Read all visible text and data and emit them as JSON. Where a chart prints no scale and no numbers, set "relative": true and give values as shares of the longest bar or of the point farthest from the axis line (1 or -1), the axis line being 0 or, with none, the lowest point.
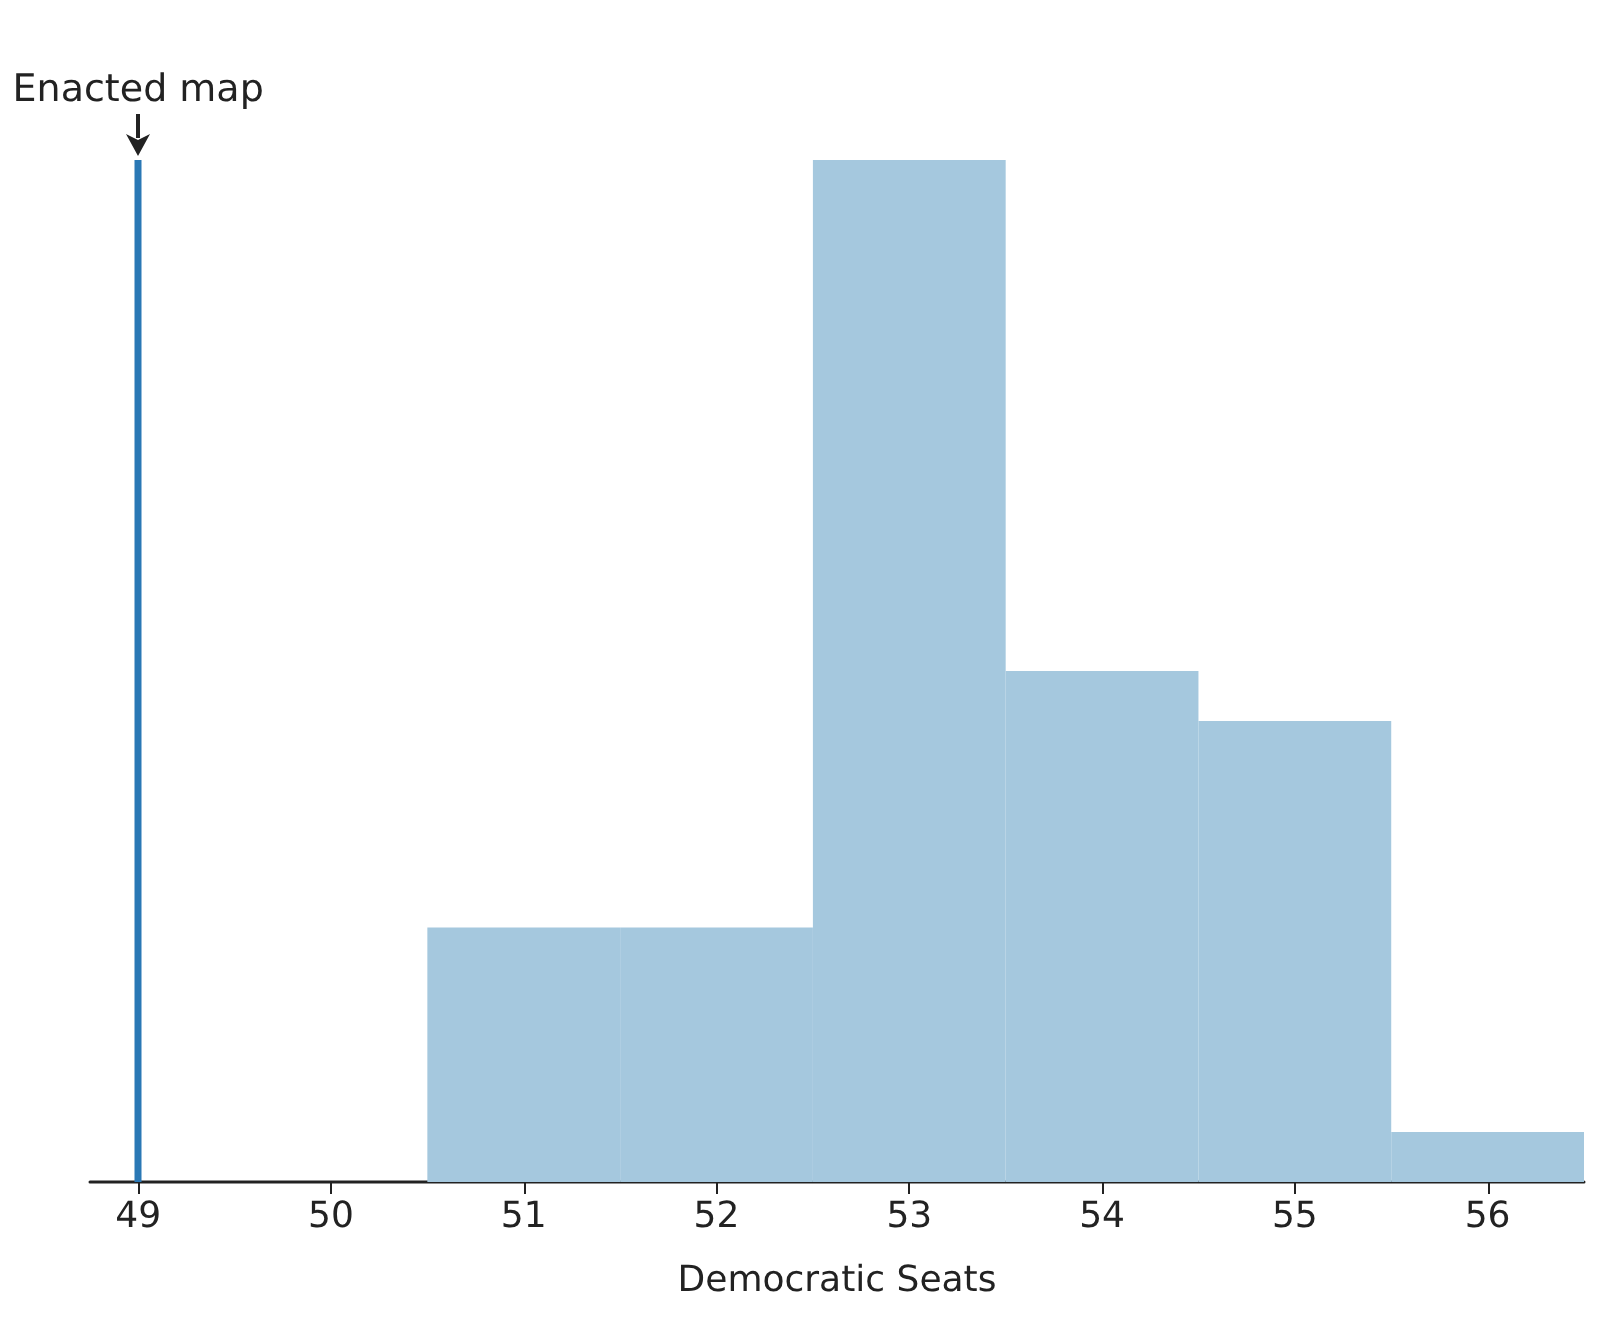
{
  "chart_data": {
    "type": "bar",
    "xlabel": "Democratic Seats",
    "relative": true,
    "x": [
      51,
      52,
      53,
      54,
      55,
      56
    ],
    "values": [
      0.249,
      0.249,
      1,
      0.5,
      0.451,
      0.049
    ],
    "color": "#a5c8de",
    "xlim": [
      48.75,
      56.5
    ],
    "xticks": [
      49,
      50,
      51,
      52,
      53,
      54,
      55,
      56
    ],
    "ref_lines": [
      {
        "axis": "x",
        "value": 49,
        "label": "Enacted map",
        "color": "#2a78b5",
        "line_style": "solid"
      }
    ],
    "grid": false
  }
}
